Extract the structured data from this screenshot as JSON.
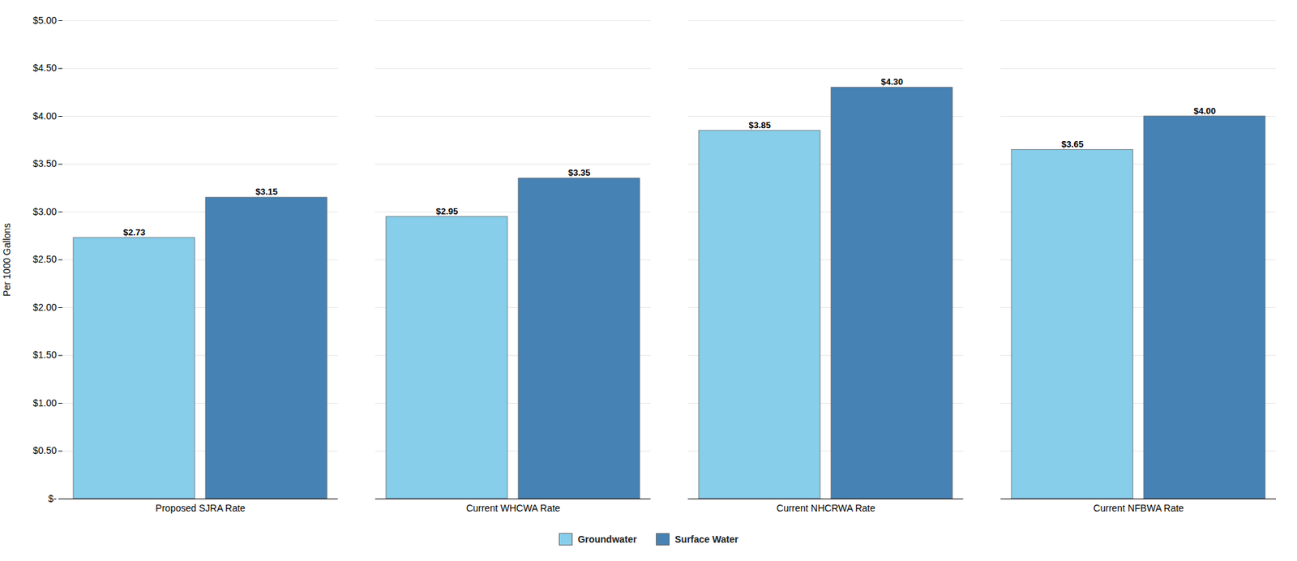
{
  "chart_data": {
    "type": "bar",
    "categories": [
      "Proposed SJRA Rate",
      "Current WHCWA Rate",
      "Current NHCRWA Rate",
      "Current NFBWA Rate"
    ],
    "series": [
      {
        "name": "Groundwater",
        "color": "#87CEEB",
        "values": [
          2.73,
          2.95,
          3.85,
          3.65
        ],
        "value_labels": [
          "$2.73",
          "$2.95",
          "$3.85",
          "$3.65"
        ]
      },
      {
        "name": "Surface Water",
        "color": "#4682B4",
        "values": [
          3.15,
          3.35,
          4.3,
          4.0
        ],
        "value_labels": [
          "$3.15",
          "$3.35",
          "$4.30",
          "$4.00"
        ]
      }
    ],
    "ylabel": "Per 1000 Gallons",
    "ylim": [
      0,
      5.0
    ],
    "yticks": [
      {
        "value": 0,
        "label": "$-"
      },
      {
        "value": 0.5,
        "label": "$0.50"
      },
      {
        "value": 1.0,
        "label": "$1.00"
      },
      {
        "value": 1.5,
        "label": "$1.50"
      },
      {
        "value": 2.0,
        "label": "$2.00"
      },
      {
        "value": 2.5,
        "label": "$2.50"
      },
      {
        "value": 3.0,
        "label": "$3.00"
      },
      {
        "value": 3.5,
        "label": "$3.50"
      },
      {
        "value": 4.0,
        "label": "$4.00"
      },
      {
        "value": 4.5,
        "label": "$4.50"
      },
      {
        "value": 5.0,
        "label": "$5.00"
      }
    ],
    "grid": true,
    "legend": "bottom",
    "data_labels": true
  }
}
